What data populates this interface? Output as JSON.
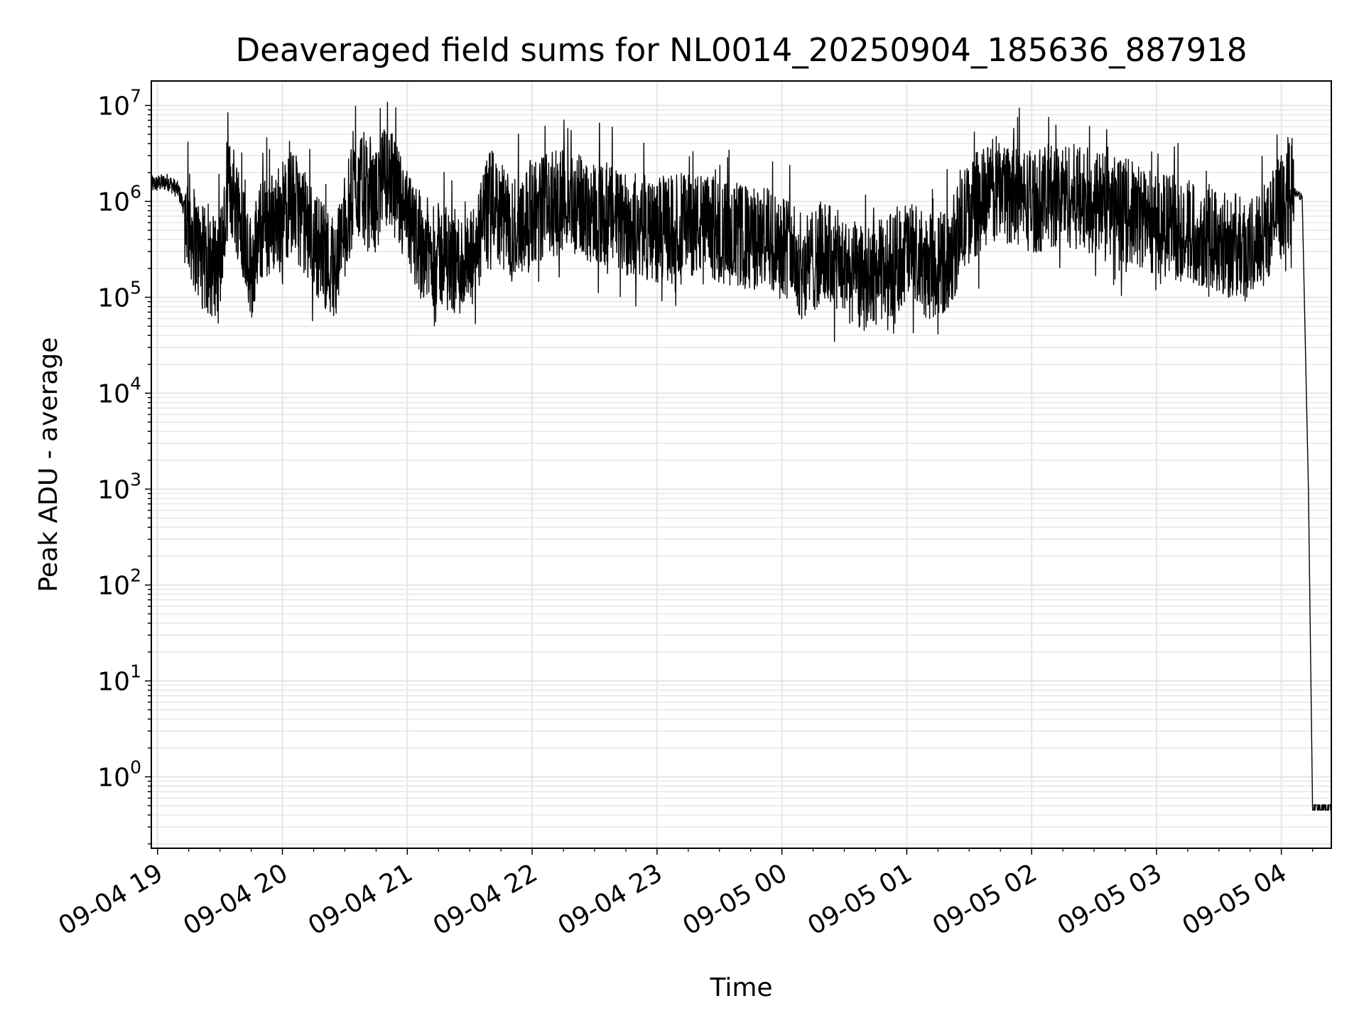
{
  "chart_data": {
    "type": "line",
    "title": "Deaveraged field sums for NL0014_20250904_185636_887918",
    "xlabel": "Time",
    "ylabel": "Peak ADU - average",
    "y_scale": "log",
    "ylim": [
      0.18,
      18000000.0
    ],
    "xlim": [
      "2025-09-04 18:57",
      "2025-09-05 04:24"
    ],
    "grid": true,
    "line_color": "#000000",
    "grid_color": "#e6e6e6",
    "x_ticks": [
      {
        "value": "2025-09-04 19:00",
        "label": "09-04 19"
      },
      {
        "value": "2025-09-04 20:00",
        "label": "09-04 20"
      },
      {
        "value": "2025-09-04 21:00",
        "label": "09-04 21"
      },
      {
        "value": "2025-09-04 22:00",
        "label": "09-04 22"
      },
      {
        "value": "2025-09-04 23:00",
        "label": "09-04 23"
      },
      {
        "value": "2025-09-05 00:00",
        "label": "09-05 00"
      },
      {
        "value": "2025-09-05 01:00",
        "label": "09-05 01"
      },
      {
        "value": "2025-09-05 02:00",
        "label": "09-05 02"
      },
      {
        "value": "2025-09-05 03:00",
        "label": "09-05 03"
      },
      {
        "value": "2025-09-05 04:00",
        "label": "09-05 04"
      }
    ],
    "y_ticks": [
      {
        "value": 1,
        "base": "10",
        "exp": "0"
      },
      {
        "value": 10,
        "base": "10",
        "exp": "1"
      },
      {
        "value": 100,
        "base": "10",
        "exp": "2"
      },
      {
        "value": 1000,
        "base": "10",
        "exp": "3"
      },
      {
        "value": 10000,
        "base": "10",
        "exp": "4"
      },
      {
        "value": 100000,
        "base": "10",
        "exp": "5"
      },
      {
        "value": 1000000,
        "base": "10",
        "exp": "6"
      },
      {
        "value": 10000000,
        "base": "10",
        "exp": "7"
      }
    ],
    "series": [
      {
        "x": [
          "2025-09-04 18:57",
          "2025-09-04 19:05",
          "2025-09-04 19:10",
          "2025-09-04 19:15",
          "2025-09-04 19:20",
          "2025-09-04 19:25",
          "2025-09-04 19:30",
          "2025-09-04 19:35",
          "2025-09-04 19:40",
          "2025-09-04 19:45",
          "2025-09-04 19:50",
          "2025-09-04 19:55",
          "2025-09-04 20:05",
          "2025-09-04 20:15",
          "2025-09-04 20:25",
          "2025-09-04 20:35",
          "2025-09-04 20:45",
          "2025-09-04 20:50",
          "2025-09-04 21:00",
          "2025-09-04 21:10",
          "2025-09-04 21:20",
          "2025-09-04 21:30",
          "2025-09-04 21:40",
          "2025-09-04 21:50",
          "2025-09-04 22:00",
          "2025-09-04 22:15",
          "2025-09-04 22:30",
          "2025-09-04 22:45",
          "2025-09-04 23:00",
          "2025-09-04 23:15",
          "2025-09-04 23:30",
          "2025-09-04 23:45",
          "2025-09-05 00:00",
          "2025-09-05 00:10",
          "2025-09-05 00:20",
          "2025-09-05 00:30",
          "2025-09-05 00:40",
          "2025-09-05 00:50",
          "2025-09-05 01:00",
          "2025-09-05 01:10",
          "2025-09-05 01:20",
          "2025-09-05 01:30",
          "2025-09-05 01:45",
          "2025-09-05 02:00",
          "2025-09-05 02:15",
          "2025-09-05 02:30",
          "2025-09-05 02:45",
          "2025-09-05 03:00",
          "2025-09-05 03:15",
          "2025-09-05 03:30",
          "2025-09-05 03:45",
          "2025-09-05 03:55",
          "2025-09-05 04:05",
          "2025-09-05 04:10",
          "2025-09-05 04:13",
          "2025-09-05 04:15",
          "2025-09-05 04:24"
        ],
        "y": [
          1500000,
          1600000,
          1300000,
          600000,
          300000,
          200000,
          250000,
          1500000,
          700000,
          200000,
          500000,
          600000,
          1000000,
          400000,
          200000,
          1500000,
          1000000,
          2000000,
          600000,
          300000,
          250000,
          200000,
          1000000,
          500000,
          800000,
          1000000,
          800000,
          600000,
          500000,
          600000,
          500000,
          400000,
          400000,
          200000,
          300000,
          200000,
          150000,
          200000,
          300000,
          200000,
          250000,
          800000,
          1500000,
          1000000,
          1200000,
          1000000,
          800000,
          600000,
          500000,
          400000,
          300000,
          600000,
          1300000,
          1100000,
          1000,
          0.45,
          0.45
        ]
      }
    ]
  }
}
